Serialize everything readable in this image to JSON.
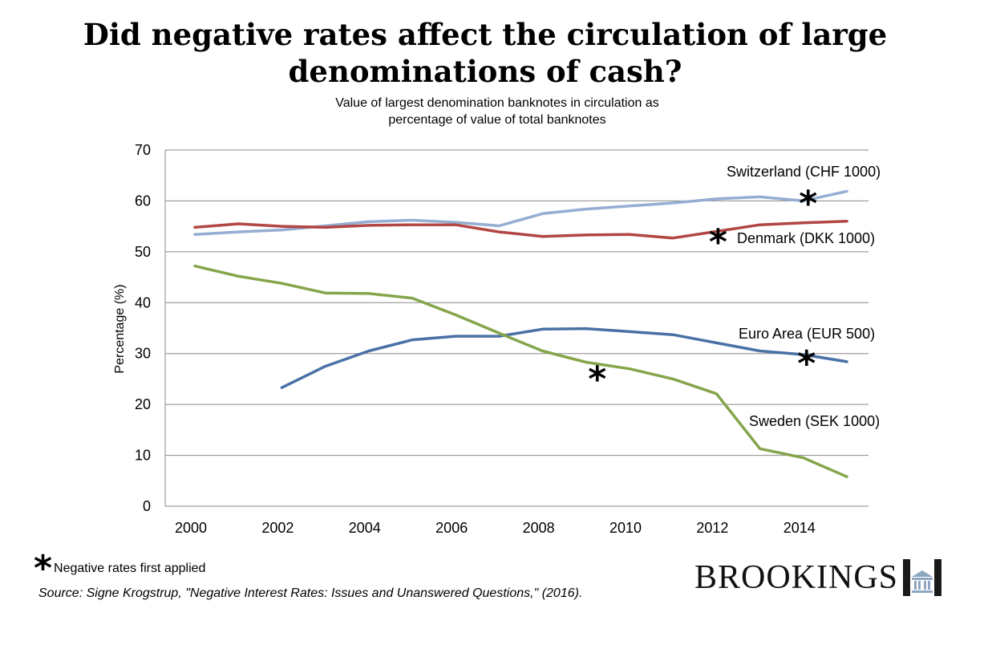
{
  "header": {
    "title_line1": "Did negative rates affect the circulation of large",
    "title_line2": "denominations of cash?",
    "subtitle_line1": "Value of largest denomination banknotes in circulation as",
    "subtitle_line2": "percentage of value of total banknotes"
  },
  "chart_data": {
    "type": "line",
    "title": "Did negative rates affect the circulation of large denominations of cash?",
    "subtitle": "Value of largest denomination banknotes in circulation as percentage of value of total banknotes",
    "xlabel": "",
    "ylabel": "Percentage (%)",
    "x": [
      2000,
      2001,
      2002,
      2003,
      2004,
      2005,
      2006,
      2007,
      2008,
      2009,
      2010,
      2011,
      2012,
      2013,
      2014,
      2015
    ],
    "xlim": [
      2000,
      2015
    ],
    "x_ticks": [
      "2000",
      "2002",
      "2004",
      "2006",
      "2008",
      "2010",
      "2012",
      "2014"
    ],
    "ylim": [
      0,
      70
    ],
    "y_ticks": [
      0,
      10,
      20,
      30,
      40,
      50,
      60,
      70
    ],
    "grid": "horizontal",
    "legend": "direct labels",
    "series": [
      {
        "name": "Switzerland (CHF 1000)",
        "color": "#95ADD3",
        "values": [
          53.4,
          53.9,
          54.3,
          55.1,
          55.9,
          56.2,
          55.8,
          55.1,
          57.5,
          58.4,
          59.0,
          59.6,
          60.4,
          60.8,
          60.0,
          61.9
        ],
        "negative_rate_year": 2014
      },
      {
        "name": "Denmark (DKK 1000)",
        "color": "#B24643",
        "values": [
          54.8,
          55.5,
          55.0,
          54.8,
          55.2,
          55.3,
          55.3,
          53.9,
          53.0,
          53.3,
          53.4,
          52.7,
          54.0,
          55.3,
          55.7,
          56.0
        ],
        "negative_rate_year": 2012
      },
      {
        "name": "Euro Area (EUR 500)",
        "color": "#4A71A6",
        "values": [
          null,
          null,
          23.3,
          27.5,
          30.5,
          32.7,
          33.4,
          33.4,
          34.8,
          34.9,
          34.3,
          33.7,
          32.1,
          30.5,
          29.8,
          28.4
        ],
        "negative_rate_year": 2014
      },
      {
        "name": "Sweden (SEK 1000)",
        "color": "#85A54B",
        "values": [
          47.2,
          45.2,
          43.8,
          41.9,
          41.8,
          40.9,
          37.6,
          34.0,
          30.5,
          28.3,
          27.0,
          25.0,
          22.1,
          11.3,
          9.5,
          5.8
        ],
        "negative_rate_year": 2009
      }
    ]
  },
  "marker": {
    "glyph": "*",
    "note": "Negative rates first applied"
  },
  "source": "Source: Signe Krogstrup, \"Negative Interest Rates: Issues and Unanswered Questions,\" (2016).",
  "logo": {
    "text": "BROOKINGS",
    "color": "#1A1A1A"
  }
}
